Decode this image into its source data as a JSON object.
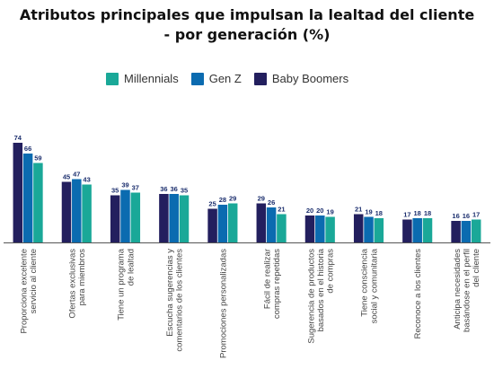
{
  "colors": {
    "Millennials": "#1aa898",
    "Gen Z": "#0b6bb0",
    "Baby Boomers": "#231f5e",
    "value_label": "#1c2f6e",
    "axis": "#555555",
    "category_text": "#444444"
  },
  "chart_data": {
    "type": "bar",
    "title_lines": [
      "Atributos principales que impulsan la lealtad del cliente",
      "- por generación (%)"
    ],
    "legend": [
      "Millennials",
      "Gen Z",
      "Baby Boomers"
    ],
    "legend_placement": "top",
    "bar_order": [
      "Baby Boomers",
      "Gen Z",
      "Millennials"
    ],
    "ylim": [
      0,
      80
    ],
    "grid": false,
    "categories": [
      [
        "Proporciona excelente",
        "servicio al cliente"
      ],
      [
        "Ofertas exclusivas",
        "para miembros"
      ],
      [
        "Tiene un programa",
        "de lealtad"
      ],
      [
        "Escucha sugerencias y",
        "comentarios de los clientes"
      ],
      [
        "Promociones personalizadas"
      ],
      [
        "Fácil de realizar",
        "compras repetidas"
      ],
      [
        "Sugerencia de productos",
        "basados en el historia",
        "de compras"
      ],
      [
        "Tiene consciencia",
        "social y comunitaria"
      ],
      [
        "Reconoce a los clientes"
      ],
      [
        "Anticipa necesidades",
        "basándose en el perfil",
        "del cliente"
      ]
    ],
    "series": [
      {
        "name": "Baby Boomers",
        "values": [
          74,
          45,
          35,
          36,
          25,
          29,
          20,
          21,
          17,
          16
        ]
      },
      {
        "name": "Gen Z",
        "values": [
          66,
          47,
          39,
          36,
          28,
          26,
          20,
          19,
          18,
          16
        ]
      },
      {
        "name": "Millennials",
        "values": [
          59,
          43,
          37,
          35,
          29,
          21,
          19,
          18,
          18,
          17
        ]
      }
    ]
  }
}
